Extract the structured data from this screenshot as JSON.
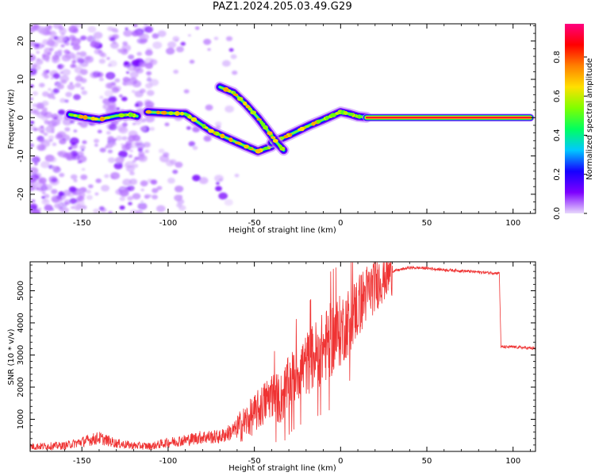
{
  "title": "PAZ1.2024.205.03.49.G29",
  "chart_data": [
    {
      "type": "heatmap",
      "xlabel": "Height of straight line (km)",
      "ylabel": "Frequency (Hz)",
      "xlim": [
        -180,
        113
      ],
      "ylim": [
        -25,
        24.5
      ],
      "xticks": [
        -150,
        -100,
        -50,
        0,
        50,
        100
      ],
      "yticks": [
        20,
        10,
        0,
        -10,
        -20
      ],
      "colorbar": {
        "label": "Normalized spectral amplitude",
        "range": [
          0,
          0.97
        ],
        "ticks": [
          0.0,
          0.2,
          0.4,
          0.6,
          0.8
        ],
        "colormap": [
          "#e8d8fc",
          "#7d00ff",
          "#1500ff",
          "#00c8ff",
          "#00ff60",
          "#80ff00",
          "#ffe000",
          "#ff8000",
          "#ff0000",
          "#ff0080"
        ]
      },
      "tracks": [
        {
          "x": [
            -157,
            -150,
            -140,
            -130,
            -122,
            -118
          ],
          "y": [
            0.8,
            0.2,
            -0.5,
            0.5,
            0.8,
            0.4
          ],
          "amplitude": 0.35
        },
        {
          "x": [
            -112,
            -100,
            -90,
            -85,
            -75,
            -65,
            -55,
            -48,
            -40
          ],
          "y": [
            1.5,
            1.2,
            1.0,
            -0.5,
            -3.5,
            -5.5,
            -7.5,
            -8.8,
            -7.5
          ],
          "amplitude": 0.3
        },
        {
          "x": [
            -40,
            -32,
            -25,
            -18,
            -10,
            -5,
            0,
            5,
            10,
            15
          ],
          "y": [
            -6.5,
            -5.0,
            -3.5,
            -2.0,
            -0.5,
            0.5,
            1.5,
            1.0,
            0.3,
            0.1
          ],
          "amplitude": 0.3
        },
        {
          "x": [
            -70,
            -62,
            -55,
            -48,
            -42,
            -37,
            -33
          ],
          "y": [
            8.0,
            6.5,
            3.5,
            0.0,
            -3.5,
            -6.5,
            -8.5
          ],
          "amplitude": 0.3
        },
        {
          "x": [
            15,
            30,
            50,
            70,
            90,
            110
          ],
          "y": [
            0.0,
            0.0,
            0.0,
            0.0,
            0.0,
            0.0
          ],
          "amplitude": 0.9
        }
      ]
    },
    {
      "type": "line",
      "xlabel": "Height of straight line (km)",
      "ylabel": "SNR (10 * v/v)",
      "xlim": [
        -180,
        113
      ],
      "ylim": [
        0,
        5900
      ],
      "xticks": [
        -150,
        -100,
        -50,
        0,
        50,
        100
      ],
      "yticks": [
        1000,
        2000,
        3000,
        4000,
        5000
      ],
      "color": "#ef3333",
      "series": [
        {
          "x": [
            -180,
            -160,
            -150,
            -140,
            -130,
            -120,
            -110,
            -100,
            -90,
            -80,
            -70,
            -60,
            -50,
            -45,
            -40,
            -35,
            -30,
            -25,
            -20,
            -15,
            -10,
            -5,
            0,
            5,
            10,
            15,
            20,
            25,
            30,
            40,
            50,
            60,
            70,
            80,
            90,
            92,
            93,
            100,
            113
          ],
          "y": [
            150,
            180,
            300,
            420,
            250,
            180,
            160,
            280,
            350,
            450,
            450,
            700,
            1150,
            1450,
            1800,
            1600,
            2100,
            2500,
            2700,
            3000,
            3200,
            3500,
            3750,
            4100,
            4500,
            4900,
            5200,
            5450,
            5600,
            5720,
            5700,
            5650,
            5620,
            5580,
            5550,
            5550,
            3250,
            3250,
            3200
          ]
        }
      ]
    }
  ]
}
